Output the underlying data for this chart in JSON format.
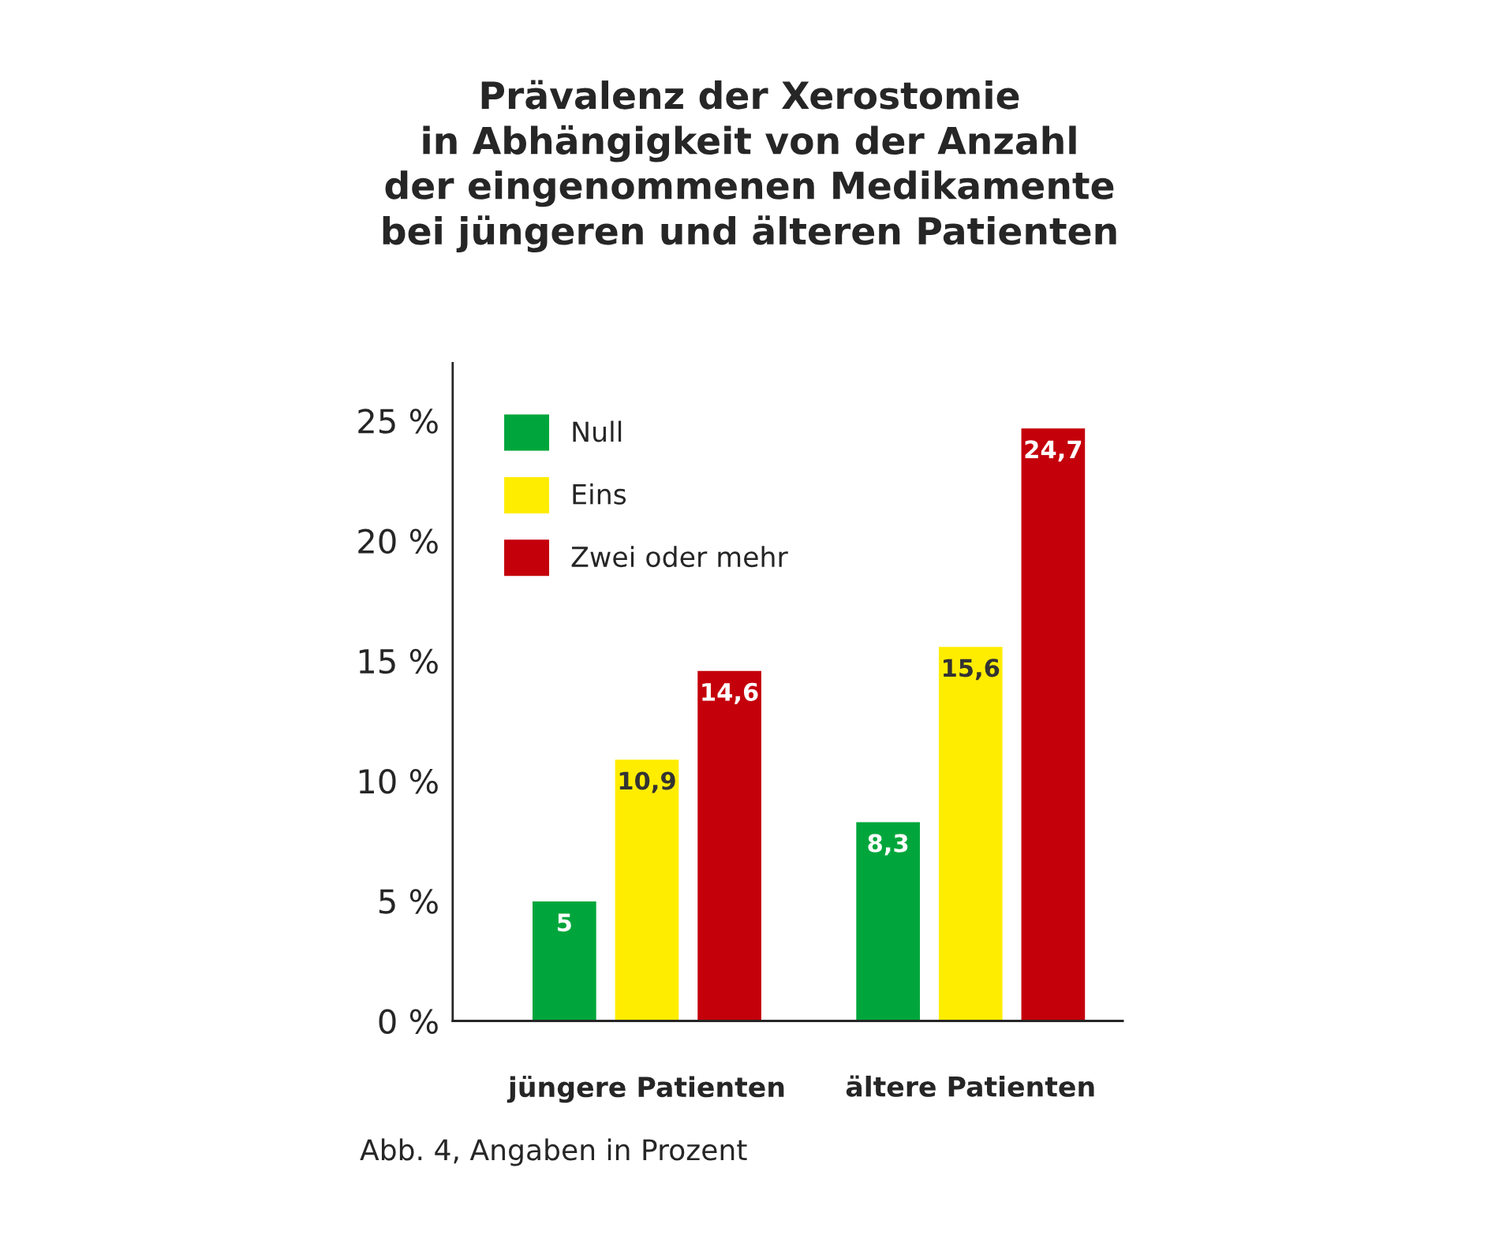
{
  "chart_data": {
    "type": "bar",
    "title": "Prävalenz der Xerostomie\nin Abhängigkeit von der Anzahl\nder eingenommenen Medikamente\nbei jüngeren und älteren Patienten",
    "categories": [
      "jüngere Patienten",
      "ältere Patienten"
    ],
    "series": [
      {
        "name": "Null",
        "color": "#00a63c",
        "values": [
          5,
          8.3
        ],
        "value_labels": [
          "5",
          "8,3"
        ]
      },
      {
        "name": "Eins",
        "color": "#ffed00",
        "values": [
          10.9,
          15.6
        ],
        "value_labels": [
          "10,9",
          "15,6"
        ]
      },
      {
        "name": "Zwei oder mehr",
        "color": "#c4000b",
        "values": [
          14.6,
          24.7
        ],
        "value_labels": [
          "14,6",
          "24,7"
        ]
      }
    ],
    "ylim": [
      0,
      27.4
    ],
    "yticks": [
      {
        "value": 0,
        "label": "0 %"
      },
      {
        "value": 5,
        "label": "5 %"
      },
      {
        "value": 10,
        "label": "10 %"
      },
      {
        "value": 15,
        "label": "15 %"
      },
      {
        "value": 20,
        "label": "20 %"
      },
      {
        "value": 25,
        "label": "25 %"
      }
    ],
    "legend": "top left",
    "grid": false,
    "annotations": [
      "Abb. 4, Angaben in Prozent"
    ]
  }
}
